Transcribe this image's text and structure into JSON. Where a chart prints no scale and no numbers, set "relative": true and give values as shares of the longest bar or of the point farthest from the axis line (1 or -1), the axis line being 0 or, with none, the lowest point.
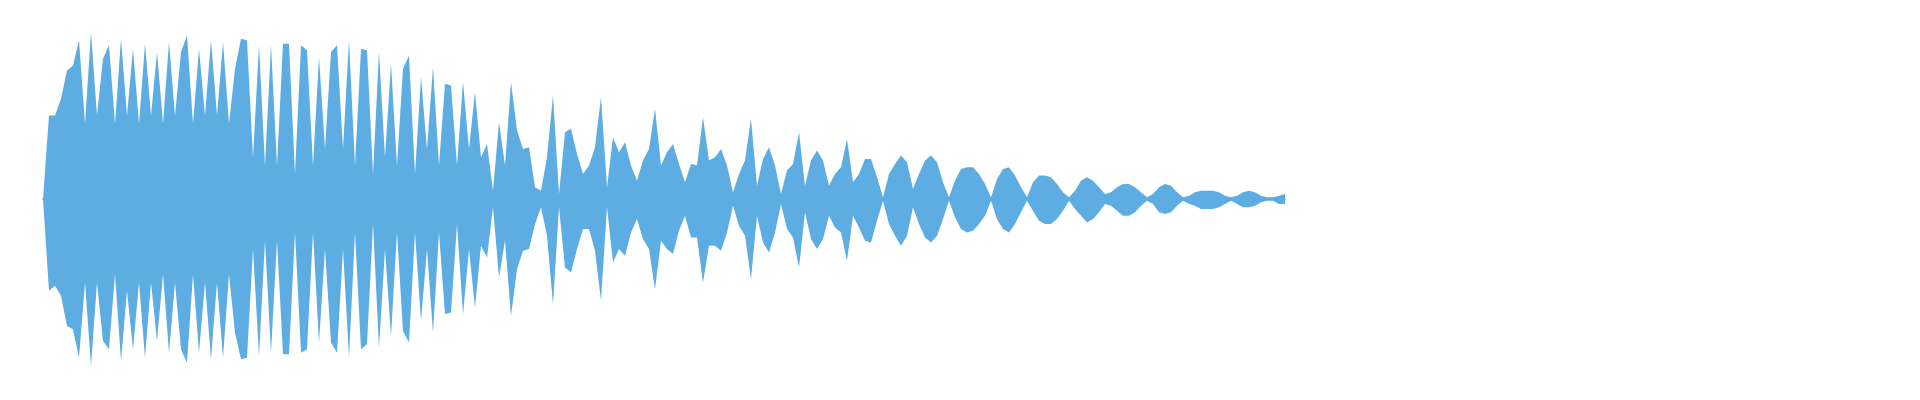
{
  "chart_data": {
    "type": "area",
    "relative": true,
    "categories": [
      null,
      null,
      null,
      null,
      null,
      null,
      null,
      null,
      null,
      null,
      null,
      null,
      null,
      null,
      null,
      null,
      null,
      null,
      null,
      null,
      null,
      null,
      null,
      null,
      null,
      null,
      null,
      null,
      null,
      null,
      null,
      null,
      null,
      null,
      null,
      null,
      null,
      null,
      null,
      null,
      null,
      null,
      null,
      null,
      null,
      null,
      null,
      null,
      null,
      null,
      null,
      null,
      null,
      null,
      null,
      null,
      null,
      null,
      null,
      null,
      null,
      null,
      null,
      null,
      null,
      null,
      null,
      null,
      null,
      null,
      null,
      null,
      null,
      null,
      null,
      null,
      null,
      null,
      null,
      null,
      null,
      null,
      null,
      null,
      null,
      null,
      null,
      null,
      null,
      null,
      null,
      null,
      null,
      null,
      null,
      null,
      null,
      null,
      null,
      null,
      null,
      null,
      null,
      null,
      null,
      null,
      null,
      null,
      null,
      null,
      null,
      null,
      null,
      null,
      null,
      null,
      null,
      null,
      null,
      null,
      null,
      null,
      null,
      null,
      null,
      null,
      null,
      null,
      null,
      null,
      null,
      null,
      null,
      null,
      null,
      null,
      null,
      null,
      null,
      null,
      null,
      null,
      null,
      null,
      null,
      null,
      null,
      null,
      null,
      null,
      null,
      null,
      null,
      null,
      null,
      null,
      null,
      null,
      null,
      null,
      null,
      null,
      null,
      null,
      null,
      null,
      null,
      null,
      null,
      null,
      null,
      null,
      null,
      null,
      null,
      null,
      null,
      null,
      null,
      null,
      null,
      null,
      null,
      null,
      null,
      null,
      null,
      null,
      null,
      null,
      null,
      null,
      null,
      null,
      null,
      null,
      null,
      null,
      null,
      null,
      null,
      null,
      null,
      null,
      null,
      null,
      null,
      null
    ],
    "series": [
      {
        "color": "#5dade2",
        "values": [
          0,
          0.5,
          0.5,
          0.6,
          0.77,
          0.8,
          0.95,
          0.45,
          1.0,
          0.5,
          0.84,
          0.92,
          0.45,
          0.96,
          0.5,
          0.9,
          0.45,
          0.93,
          0.5,
          0.88,
          0.45,
          0.94,
          0.5,
          0.88,
          0.98,
          0.45,
          0.9,
          0.5,
          0.95,
          0.5,
          0.94,
          0.45,
          0.78,
          0.96,
          0.95,
          0.25,
          0.92,
          0.2,
          0.92,
          0.2,
          0.93,
          0.93,
          0.15,
          0.92,
          0.89,
          0.2,
          0.85,
          0.3,
          0.88,
          0.92,
          0.3,
          0.95,
          0.2,
          0.9,
          0.89,
          0.15,
          0.88,
          0.25,
          0.81,
          0.2,
          0.78,
          0.86,
          0.15,
          0.73,
          0.3,
          0.79,
          0.2,
          0.69,
          0.68,
          0.2,
          0.7,
          0.3,
          0.64,
          0.25,
          0.33,
          0.05,
          0.46,
          0.2,
          0.7,
          0.41,
          0.3,
          0.31,
          0.07,
          0.05,
          0.25,
          0.62,
          0.03,
          0.4,
          0.42,
          0.27,
          0.15,
          0.2,
          0.31,
          0.61,
          0.07,
          0.37,
          0.28,
          0.34,
          0.2,
          0.11,
          0.23,
          0.3,
          0.54,
          0.2,
          0.28,
          0.33,
          0.21,
          0.1,
          0.21,
          0.2,
          0.49,
          0.23,
          0.25,
          0.3,
          0.2,
          0.04,
          0.15,
          0.23,
          0.48,
          0.08,
          0.24,
          0.31,
          0.2,
          0.03,
          0.17,
          0.21,
          0.4,
          0.08,
          0.23,
          0.29,
          0.23,
          0.08,
          0.15,
          0.19,
          0.36,
          0.1,
          0.15,
          0.24,
          0.24,
          0.13,
          0.01,
          0.15,
          0.21,
          0.26,
          0.22,
          0.06,
          0.15,
          0.23,
          0.26,
          0.22,
          0.1,
          0.01,
          0.11,
          0.18,
          0.19,
          0.19,
          0.15,
          0.09,
          0.01,
          0.12,
          0.18,
          0.19,
          0.14,
          0.07,
          0.01,
          0.1,
          0.14,
          0.14,
          0.13,
          0.09,
          0.04,
          0.01,
          0.05,
          0.11,
          0.13,
          0.11,
          0.07,
          0.03,
          0.04,
          0.07,
          0.09,
          0.09,
          0.07,
          0.04,
          0.01,
          0.03,
          0.07,
          0.09,
          0.08,
          0.04,
          0.01,
          0.02,
          0.04,
          0.05,
          0.05,
          0.05,
          0.04,
          0.02,
          0.01,
          0.02,
          0.04,
          0.05,
          0.04,
          0.02,
          0.01,
          0.01,
          0.02,
          0.03
        ]
      },
      {
        "color": "#5dade2",
        "values": [
          0,
          -0.55,
          -0.52,
          -0.58,
          -0.76,
          -0.78,
          -0.95,
          -0.5,
          -1.0,
          -0.5,
          -0.85,
          -0.9,
          -0.45,
          -0.97,
          -0.55,
          -0.9,
          -0.5,
          -0.95,
          -0.5,
          -0.85,
          -0.45,
          -0.92,
          -0.5,
          -0.9,
          -0.98,
          -0.45,
          -0.92,
          -0.5,
          -0.96,
          -0.5,
          -0.95,
          -0.45,
          -0.8,
          -0.96,
          -0.95,
          -0.3,
          -0.94,
          -0.25,
          -0.92,
          -0.25,
          -0.93,
          -0.93,
          -0.2,
          -0.92,
          -0.9,
          -0.2,
          -0.86,
          -0.3,
          -0.86,
          -0.92,
          -0.3,
          -0.95,
          -0.2,
          -0.9,
          -0.87,
          -0.15,
          -0.89,
          -0.3,
          -0.82,
          -0.2,
          -0.79,
          -0.86,
          -0.2,
          -0.73,
          -0.3,
          -0.8,
          -0.2,
          -0.69,
          -0.68,
          -0.15,
          -0.69,
          -0.3,
          -0.65,
          -0.28,
          -0.35,
          -0.05,
          -0.47,
          -0.25,
          -0.7,
          -0.42,
          -0.31,
          -0.3,
          -0.15,
          -0.05,
          -0.22,
          -0.63,
          -0.05,
          -0.41,
          -0.44,
          -0.3,
          -0.18,
          -0.18,
          -0.31,
          -0.61,
          -0.05,
          -0.38,
          -0.3,
          -0.34,
          -0.2,
          -0.12,
          -0.24,
          -0.3,
          -0.54,
          -0.25,
          -0.3,
          -0.33,
          -0.19,
          -0.1,
          -0.23,
          -0.23,
          -0.5,
          -0.28,
          -0.28,
          -0.31,
          -0.2,
          -0.04,
          -0.16,
          -0.22,
          -0.48,
          -0.1,
          -0.26,
          -0.32,
          -0.2,
          -0.03,
          -0.18,
          -0.23,
          -0.41,
          -0.08,
          -0.24,
          -0.3,
          -0.24,
          -0.1,
          -0.17,
          -0.2,
          -0.37,
          -0.1,
          -0.17,
          -0.25,
          -0.26,
          -0.13,
          -0.01,
          -0.15,
          -0.22,
          -0.28,
          -0.22,
          -0.05,
          -0.15,
          -0.23,
          -0.26,
          -0.22,
          -0.12,
          -0.01,
          -0.11,
          -0.18,
          -0.2,
          -0.19,
          -0.15,
          -0.1,
          -0.01,
          -0.12,
          -0.18,
          -0.2,
          -0.15,
          -0.08,
          -0.01,
          -0.07,
          -0.13,
          -0.15,
          -0.15,
          -0.12,
          -0.07,
          -0.01,
          -0.06,
          -0.1,
          -0.14,
          -0.12,
          -0.08,
          -0.03,
          -0.04,
          -0.07,
          -0.1,
          -0.1,
          -0.08,
          -0.04,
          -0.01,
          -0.03,
          -0.08,
          -0.09,
          -0.08,
          -0.04,
          -0.01,
          -0.03,
          -0.04,
          -0.06,
          -0.06,
          -0.06,
          -0.05,
          -0.03,
          -0.01,
          -0.03,
          -0.05,
          -0.05,
          -0.04,
          -0.02,
          -0.01,
          -0.01,
          -0.03,
          -0.03
        ]
      }
    ]
  }
}
